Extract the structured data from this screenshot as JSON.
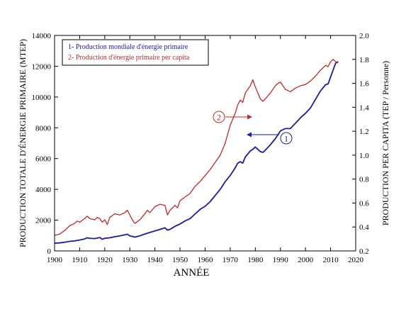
{
  "chart_data": {
    "type": "line",
    "xlabel": "ANNÉE",
    "ylabel_left": "PRODUCTION TOTALE D'ÉNERGIE PRIMAIRE  (MTEP)",
    "ylabel_right": "PRODUCTION PER CAPITA  (TEP / Personne)",
    "xlim": [
      1900,
      2020
    ],
    "ylim_left": [
      0,
      14000
    ],
    "ylim_right": [
      0.2,
      2.0
    ],
    "x_ticks": [
      "1900",
      "1910",
      "1920",
      "1930",
      "1940",
      "1950",
      "1960",
      "1970",
      "1980",
      "1990",
      "2000",
      "2010",
      "2020"
    ],
    "y_left_ticks": [
      "0",
      "2000",
      "4000",
      "6000",
      "8000",
      "10000",
      "12000",
      "14000"
    ],
    "y_right_ticks": [
      "0.2",
      "0.4",
      "0.6",
      "0.8",
      "1.0",
      "1.2",
      "1.4",
      "1.6",
      "1.8",
      "2.0"
    ],
    "grid": false,
    "legend_position": "top-left",
    "legend": [
      {
        "label": "1- Production mondiale d'énergie primaire",
        "color": "#1a1aa6"
      },
      {
        "label": "2- Production d'énergie primaire per capita",
        "color": "#c0282a"
      }
    ],
    "annotations": [
      {
        "label": "1",
        "series": 0,
        "color": "#1a1aa6",
        "arrow": "left"
      },
      {
        "label": "2",
        "series": 1,
        "color": "#c0282a",
        "arrow": "right"
      }
    ],
    "series": [
      {
        "axis": "left",
        "color": "#1a1aa6",
        "x": [
          1900,
          1902,
          1904,
          1906,
          1908,
          1910,
          1912,
          1913,
          1914,
          1916,
          1918,
          1919,
          1920,
          1922,
          1924,
          1926,
          1928,
          1929,
          1930,
          1932,
          1934,
          1936,
          1938,
          1940,
          1942,
          1944,
          1945,
          1946,
          1948,
          1950,
          1952,
          1954,
          1956,
          1958,
          1960,
          1962,
          1964,
          1966,
          1968,
          1970,
          1972,
          1973,
          1974,
          1975,
          1976,
          1978,
          1979,
          1980,
          1981,
          1982,
          1983,
          1984,
          1986,
          1988,
          1990,
          1992,
          1994,
          1996,
          1998,
          2000,
          2002,
          2004,
          2006,
          2008,
          2009,
          2010,
          2012,
          2013
        ],
        "values": [
          500,
          520,
          560,
          620,
          650,
          710,
          780,
          850,
          820,
          800,
          870,
          760,
          820,
          850,
          920,
          980,
          1050,
          1080,
          980,
          900,
          980,
          1100,
          1200,
          1300,
          1400,
          1500,
          1350,
          1400,
          1600,
          1750,
          1950,
          2100,
          2400,
          2700,
          2900,
          3200,
          3600,
          4000,
          4500,
          4900,
          5400,
          5700,
          5800,
          5700,
          6100,
          6500,
          6600,
          6750,
          6600,
          6450,
          6400,
          6550,
          6900,
          7300,
          7800,
          7950,
          7950,
          8300,
          8650,
          8950,
          9300,
          9850,
          10400,
          10800,
          10850,
          11300,
          12200,
          12300
        ]
      },
      {
        "axis": "right",
        "color": "#c0282a",
        "x": [
          1900,
          1902,
          1904,
          1906,
          1908,
          1909,
          1910,
          1912,
          1913,
          1914,
          1916,
          1917,
          1918,
          1919,
          1920,
          1921,
          1922,
          1924,
          1926,
          1928,
          1929,
          1930,
          1931,
          1932,
          1934,
          1936,
          1937,
          1938,
          1940,
          1942,
          1944,
          1945,
          1946,
          1948,
          1949,
          1950,
          1952,
          1954,
          1956,
          1958,
          1960,
          1962,
          1964,
          1966,
          1968,
          1970,
          1972,
          1973,
          1974,
          1975,
          1976,
          1977,
          1978,
          1979,
          1980,
          1981,
          1982,
          1983,
          1984,
          1986,
          1988,
          1989,
          1990,
          1992,
          1994,
          1996,
          1998,
          2000,
          2002,
          2004,
          2006,
          2008,
          2009,
          2010,
          2011,
          2012,
          2013
        ],
        "values": [
          0.33,
          0.34,
          0.37,
          0.41,
          0.43,
          0.45,
          0.44,
          0.47,
          0.49,
          0.47,
          0.46,
          0.48,
          0.47,
          0.44,
          0.46,
          0.42,
          0.48,
          0.51,
          0.5,
          0.52,
          0.54,
          0.5,
          0.46,
          0.43,
          0.46,
          0.51,
          0.54,
          0.52,
          0.57,
          0.59,
          0.58,
          0.5,
          0.54,
          0.58,
          0.56,
          0.62,
          0.65,
          0.68,
          0.74,
          0.78,
          0.83,
          0.88,
          0.94,
          1.0,
          1.1,
          1.25,
          1.35,
          1.42,
          1.46,
          1.44,
          1.52,
          1.55,
          1.58,
          1.63,
          1.57,
          1.52,
          1.47,
          1.45,
          1.47,
          1.52,
          1.58,
          1.6,
          1.61,
          1.55,
          1.53,
          1.56,
          1.58,
          1.59,
          1.62,
          1.66,
          1.71,
          1.75,
          1.74,
          1.78,
          1.8,
          1.78,
          1.77
        ]
      }
    ]
  }
}
